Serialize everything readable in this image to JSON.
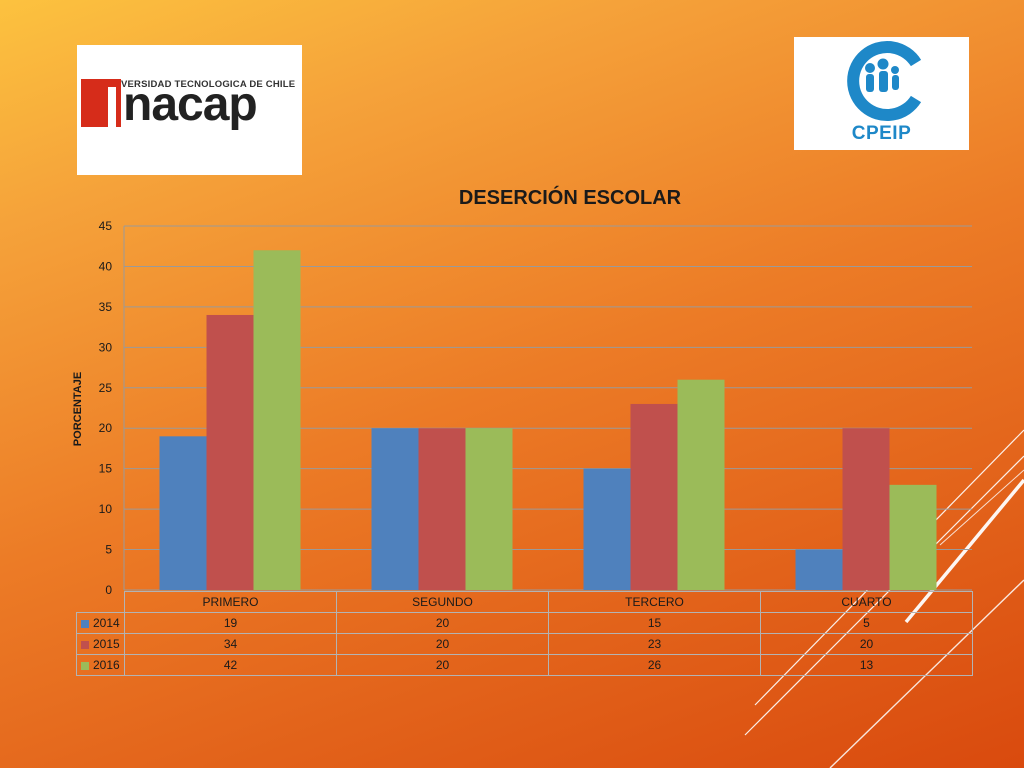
{
  "logos": {
    "inacap": {
      "tagline": "UNIVERSIDAD TECNOLOGICA DE CHILE",
      "word": "nacap"
    },
    "cpeip": {
      "word": "CPEIP"
    }
  },
  "colors": {
    "accent_orange": "#ec7b26",
    "inacap_red": "#d62c1a",
    "cpeip_blue": "#1e88c8"
  },
  "chart_data": {
    "type": "bar",
    "title": "DESERCIÓN ESCOLAR",
    "xlabel": "",
    "ylabel": "PORCENTAJE",
    "categories": [
      "PRIMERO",
      "SEGUNDO",
      "TERCERO",
      "CUARTO"
    ],
    "ylim": [
      0,
      45
    ],
    "yticks": [
      0,
      5,
      10,
      15,
      20,
      25,
      30,
      35,
      40,
      45
    ],
    "grid": true,
    "legend": "data-table",
    "series": [
      {
        "name": "2014",
        "color": "#4f81bd",
        "values": [
          19,
          20,
          15,
          5
        ]
      },
      {
        "name": "2015",
        "color": "#c0504d",
        "values": [
          34,
          20,
          23,
          20
        ]
      },
      {
        "name": "2016",
        "color": "#9bbb59",
        "values": [
          42,
          20,
          26,
          13
        ]
      }
    ]
  }
}
